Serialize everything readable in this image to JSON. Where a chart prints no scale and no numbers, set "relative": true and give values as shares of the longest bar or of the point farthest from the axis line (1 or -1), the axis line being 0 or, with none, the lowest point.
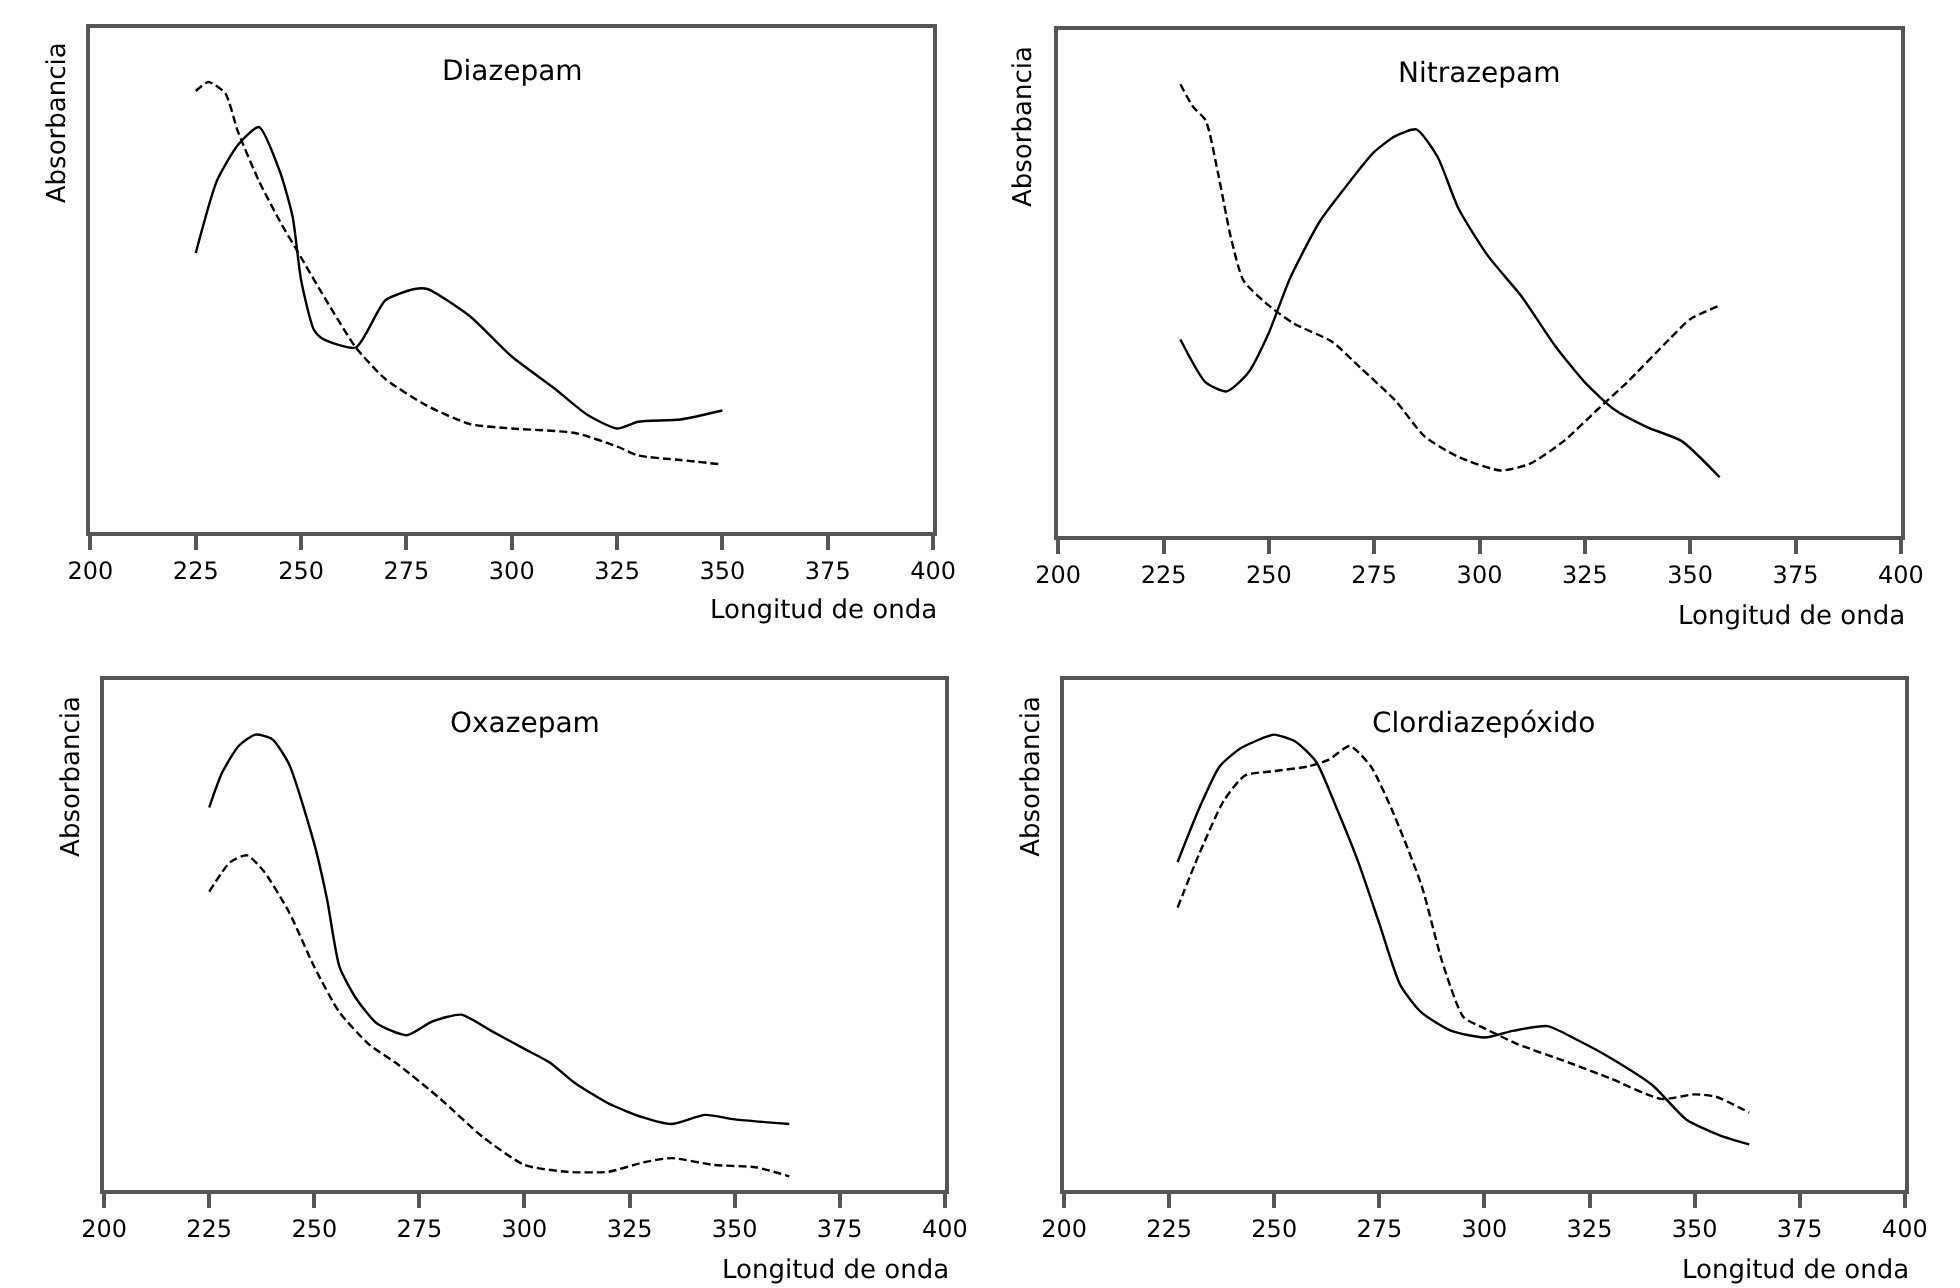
{
  "chart_data": [
    {
      "type": "line",
      "title": "Diazepam",
      "xlabel": "Longitud de onda",
      "ylabel": "Absorbancia",
      "relative": true,
      "xlim": [
        200,
        400
      ],
      "xticks": [
        200,
        225,
        250,
        275,
        300,
        325,
        350,
        375,
        400
      ],
      "marker": "none",
      "series": [
        {
          "color": "#000000",
          "line_style": "solid",
          "x": [
            225,
            230,
            235,
            240,
            245,
            248,
            250,
            253,
            255,
            263,
            270,
            277,
            280,
            290,
            300,
            310,
            318,
            325,
            330,
            340,
            350
          ],
          "values": [
            0.62,
            0.78,
            0.86,
            0.9,
            0.8,
            0.7,
            0.56,
            0.45,
            0.43,
            0.41,
            0.515,
            0.54,
            0.54,
            0.48,
            0.39,
            0.32,
            0.26,
            0.23,
            0.245,
            0.25,
            0.27
          ]
        },
        {
          "color": "#000000",
          "line_style": "dashed",
          "x": [
            225,
            228,
            232,
            235,
            240,
            245,
            250,
            255,
            263,
            270,
            280,
            290,
            300,
            315,
            325,
            330,
            340,
            350
          ],
          "values": [
            0.98,
            1.0,
            0.975,
            0.89,
            0.78,
            0.69,
            0.61,
            0.53,
            0.41,
            0.34,
            0.28,
            0.24,
            0.23,
            0.22,
            0.19,
            0.17,
            0.16,
            0.15
          ]
        }
      ]
    },
    {
      "type": "line",
      "title": "Nitrazepam",
      "xlabel": "Longitud de onda",
      "ylabel": "Absorbancia",
      "relative": true,
      "xlim": [
        200,
        400
      ],
      "xticks": [
        200,
        225,
        250,
        275,
        300,
        325,
        350,
        375,
        400
      ],
      "marker": "none",
      "series": [
        {
          "color": "#000000",
          "line_style": "solid",
          "x": [
            229,
            235,
            240,
            245,
            250,
            255,
            262,
            268,
            275,
            280,
            285,
            290,
            295,
            302,
            310,
            318,
            325,
            332,
            340,
            348,
            357
          ],
          "values": [
            0.435,
            0.34,
            0.32,
            0.36,
            0.45,
            0.57,
            0.695,
            0.77,
            0.85,
            0.885,
            0.9,
            0.84,
            0.725,
            0.62,
            0.53,
            0.42,
            0.34,
            0.28,
            0.24,
            0.21,
            0.13
          ]
        },
        {
          "color": "#000000",
          "line_style": "dashed",
          "x": [
            229,
            232,
            235,
            238,
            241,
            244,
            250,
            256,
            265,
            272,
            280,
            287,
            295,
            305,
            312,
            320,
            328,
            335,
            345,
            350,
            357
          ],
          "values": [
            1.0,
            0.95,
            0.92,
            0.8,
            0.66,
            0.565,
            0.51,
            0.47,
            0.43,
            0.37,
            0.3,
            0.22,
            0.175,
            0.145,
            0.16,
            0.21,
            0.28,
            0.34,
            0.435,
            0.48,
            0.51
          ]
        }
      ]
    },
    {
      "type": "line",
      "title": "Oxazepam",
      "xlabel": "Longitud de onda",
      "ylabel": "Absorbancia",
      "relative": true,
      "xlim": [
        200,
        400
      ],
      "xticks": [
        200,
        225,
        250,
        275,
        300,
        325,
        350,
        375,
        400
      ],
      "marker": "none",
      "series": [
        {
          "color": "#000000",
          "line_style": "solid",
          "x": [
            225,
            228,
            232,
            236,
            240,
            244,
            250,
            253,
            256,
            260,
            265,
            272,
            278,
            285,
            292,
            300,
            306,
            312,
            320,
            328,
            335,
            343,
            350,
            363
          ],
          "values": [
            0.84,
            0.915,
            0.975,
            1.0,
            0.99,
            0.935,
            0.76,
            0.64,
            0.49,
            0.42,
            0.365,
            0.34,
            0.37,
            0.385,
            0.35,
            0.31,
            0.28,
            0.235,
            0.19,
            0.16,
            0.145,
            0.165,
            0.155,
            0.145
          ]
        },
        {
          "color": "#000000",
          "line_style": "dashed",
          "x": [
            225,
            230,
            234,
            238,
            244,
            250,
            256,
            263,
            270,
            280,
            290,
            300,
            310,
            320,
            328,
            335,
            345,
            355,
            363
          ],
          "values": [
            0.655,
            0.72,
            0.735,
            0.7,
            0.61,
            0.49,
            0.39,
            0.32,
            0.275,
            0.2,
            0.117,
            0.055,
            0.04,
            0.04,
            0.06,
            0.07,
            0.055,
            0.05,
            0.03
          ]
        }
      ]
    },
    {
      "type": "line",
      "title": "Clordiazepóxido",
      "xlabel": "Longitud de onda",
      "ylabel": "Absorbancia",
      "relative": true,
      "xlim": [
        200,
        400
      ],
      "xticks": [
        200,
        225,
        250,
        275,
        300,
        325,
        350,
        375,
        400
      ],
      "marker": "none",
      "series": [
        {
          "color": "#000000",
          "line_style": "solid",
          "x": [
            227,
            232,
            237,
            242,
            248,
            250,
            255,
            260,
            265,
            270,
            275,
            280,
            285,
            292,
            300,
            307,
            315,
            322,
            330,
            340,
            348,
            356,
            363
          ],
          "values": [
            0.72,
            0.835,
            0.93,
            0.97,
            0.995,
            1.0,
            0.985,
            0.94,
            0.835,
            0.72,
            0.585,
            0.45,
            0.39,
            0.35,
            0.335,
            0.35,
            0.36,
            0.33,
            0.29,
            0.23,
            0.155,
            0.12,
            0.1
          ]
        },
        {
          "color": "#000000",
          "line_style": "dashed",
          "x": [
            227,
            232,
            238,
            243,
            250,
            258,
            263,
            268,
            273,
            278,
            285,
            290,
            295,
            300,
            308,
            320,
            330,
            342,
            350,
            355,
            363
          ],
          "values": [
            0.62,
            0.735,
            0.855,
            0.91,
            0.92,
            0.93,
            0.945,
            0.975,
            0.93,
            0.835,
            0.67,
            0.5,
            0.38,
            0.355,
            0.32,
            0.28,
            0.245,
            0.2,
            0.21,
            0.205,
            0.17
          ]
        }
      ]
    }
  ]
}
